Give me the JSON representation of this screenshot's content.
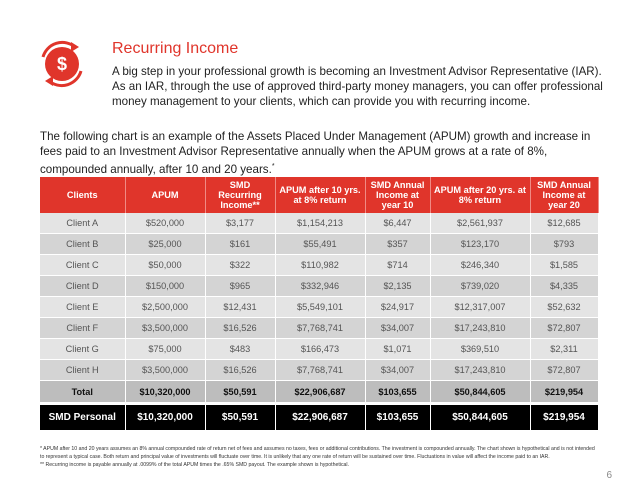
{
  "header": {
    "title": "Recurring Income",
    "intro": "A big step in your professional growth is becoming an Investment Advisor Representative (IAR). As an IAR, through the use of approved third-party money managers, you can offer professional money management to your clients, which can provide you with recurring income."
  },
  "lead": {
    "text": "The following chart is an example of the Assets Placed Under Management (APUM) growth and increase in fees paid to an Investment Advisor Representative annually when the APUM grows at a rate of 8%, compounded annually, after 10 and 20 years.",
    "mark": "*"
  },
  "table": {
    "columns": [
      "Clients",
      "APUM",
      "SMD Recurring Income**",
      "APUM after 10 yrs. at 8% return",
      "SMD Annual Income at year 10",
      "APUM after 20 yrs. at 8% return",
      "SMD Annual Income at year 20"
    ],
    "rows": [
      [
        "Client A",
        "$520,000",
        "$3,177",
        "$1,154,213",
        "$6,447",
        "$2,561,937",
        "$12,685"
      ],
      [
        "Client B",
        "$25,000",
        "$161",
        "$55,491",
        "$357",
        "$123,170",
        "$793"
      ],
      [
        "Client C",
        "$50,000",
        "$322",
        "$110,982",
        "$714",
        "$246,340",
        "$1,585"
      ],
      [
        "Client D",
        "$150,000",
        "$965",
        "$332,946",
        "$2,135",
        "$739,020",
        "$4,335"
      ],
      [
        "Client E",
        "$2,500,000",
        "$12,431",
        "$5,549,101",
        "$24,917",
        "$12,317,007",
        "$52,632"
      ],
      [
        "Client F",
        "$3,500,000",
        "$16,526",
        "$7,768,741",
        "$34,007",
        "$17,243,810",
        "$72,807"
      ],
      [
        "Client G",
        "$75,000",
        "$483",
        "$166,473",
        "$1,071",
        "$369,510",
        "$2,311"
      ],
      [
        "Client H",
        "$3,500,000",
        "$16,526",
        "$7,768,741",
        "$34,007",
        "$17,243,810",
        "$72,807"
      ]
    ],
    "total": [
      "Total",
      "$10,320,000",
      "$50,591",
      "$22,906,687",
      "$103,655",
      "$50,844,605",
      "$219,954"
    ],
    "personal": [
      "SMD Personal",
      "$10,320,000",
      "$50,591",
      "$22,906,687",
      "$103,655",
      "$50,844,605",
      "$219,954"
    ]
  },
  "footnotes": [
    "* APUM after 10 and 20 years assumes an 8% annual compounded rate of return net of fees and assumes no taxes, fees or additional contributions. The investment is compounded annually. The chart shown is hypothetical and is not intended to represent a typical case. Both return and principal value of investments will fluctuate over time. It is unlikely that any one rate of return will be sustained over time. Fluctuations in value will affect the income paid to an IAR.",
    "** Recurring income is payable annually at .0099% of the total APUM times the .65% SMD payout. The example shown is hypothetical."
  ],
  "page_number": "6"
}
